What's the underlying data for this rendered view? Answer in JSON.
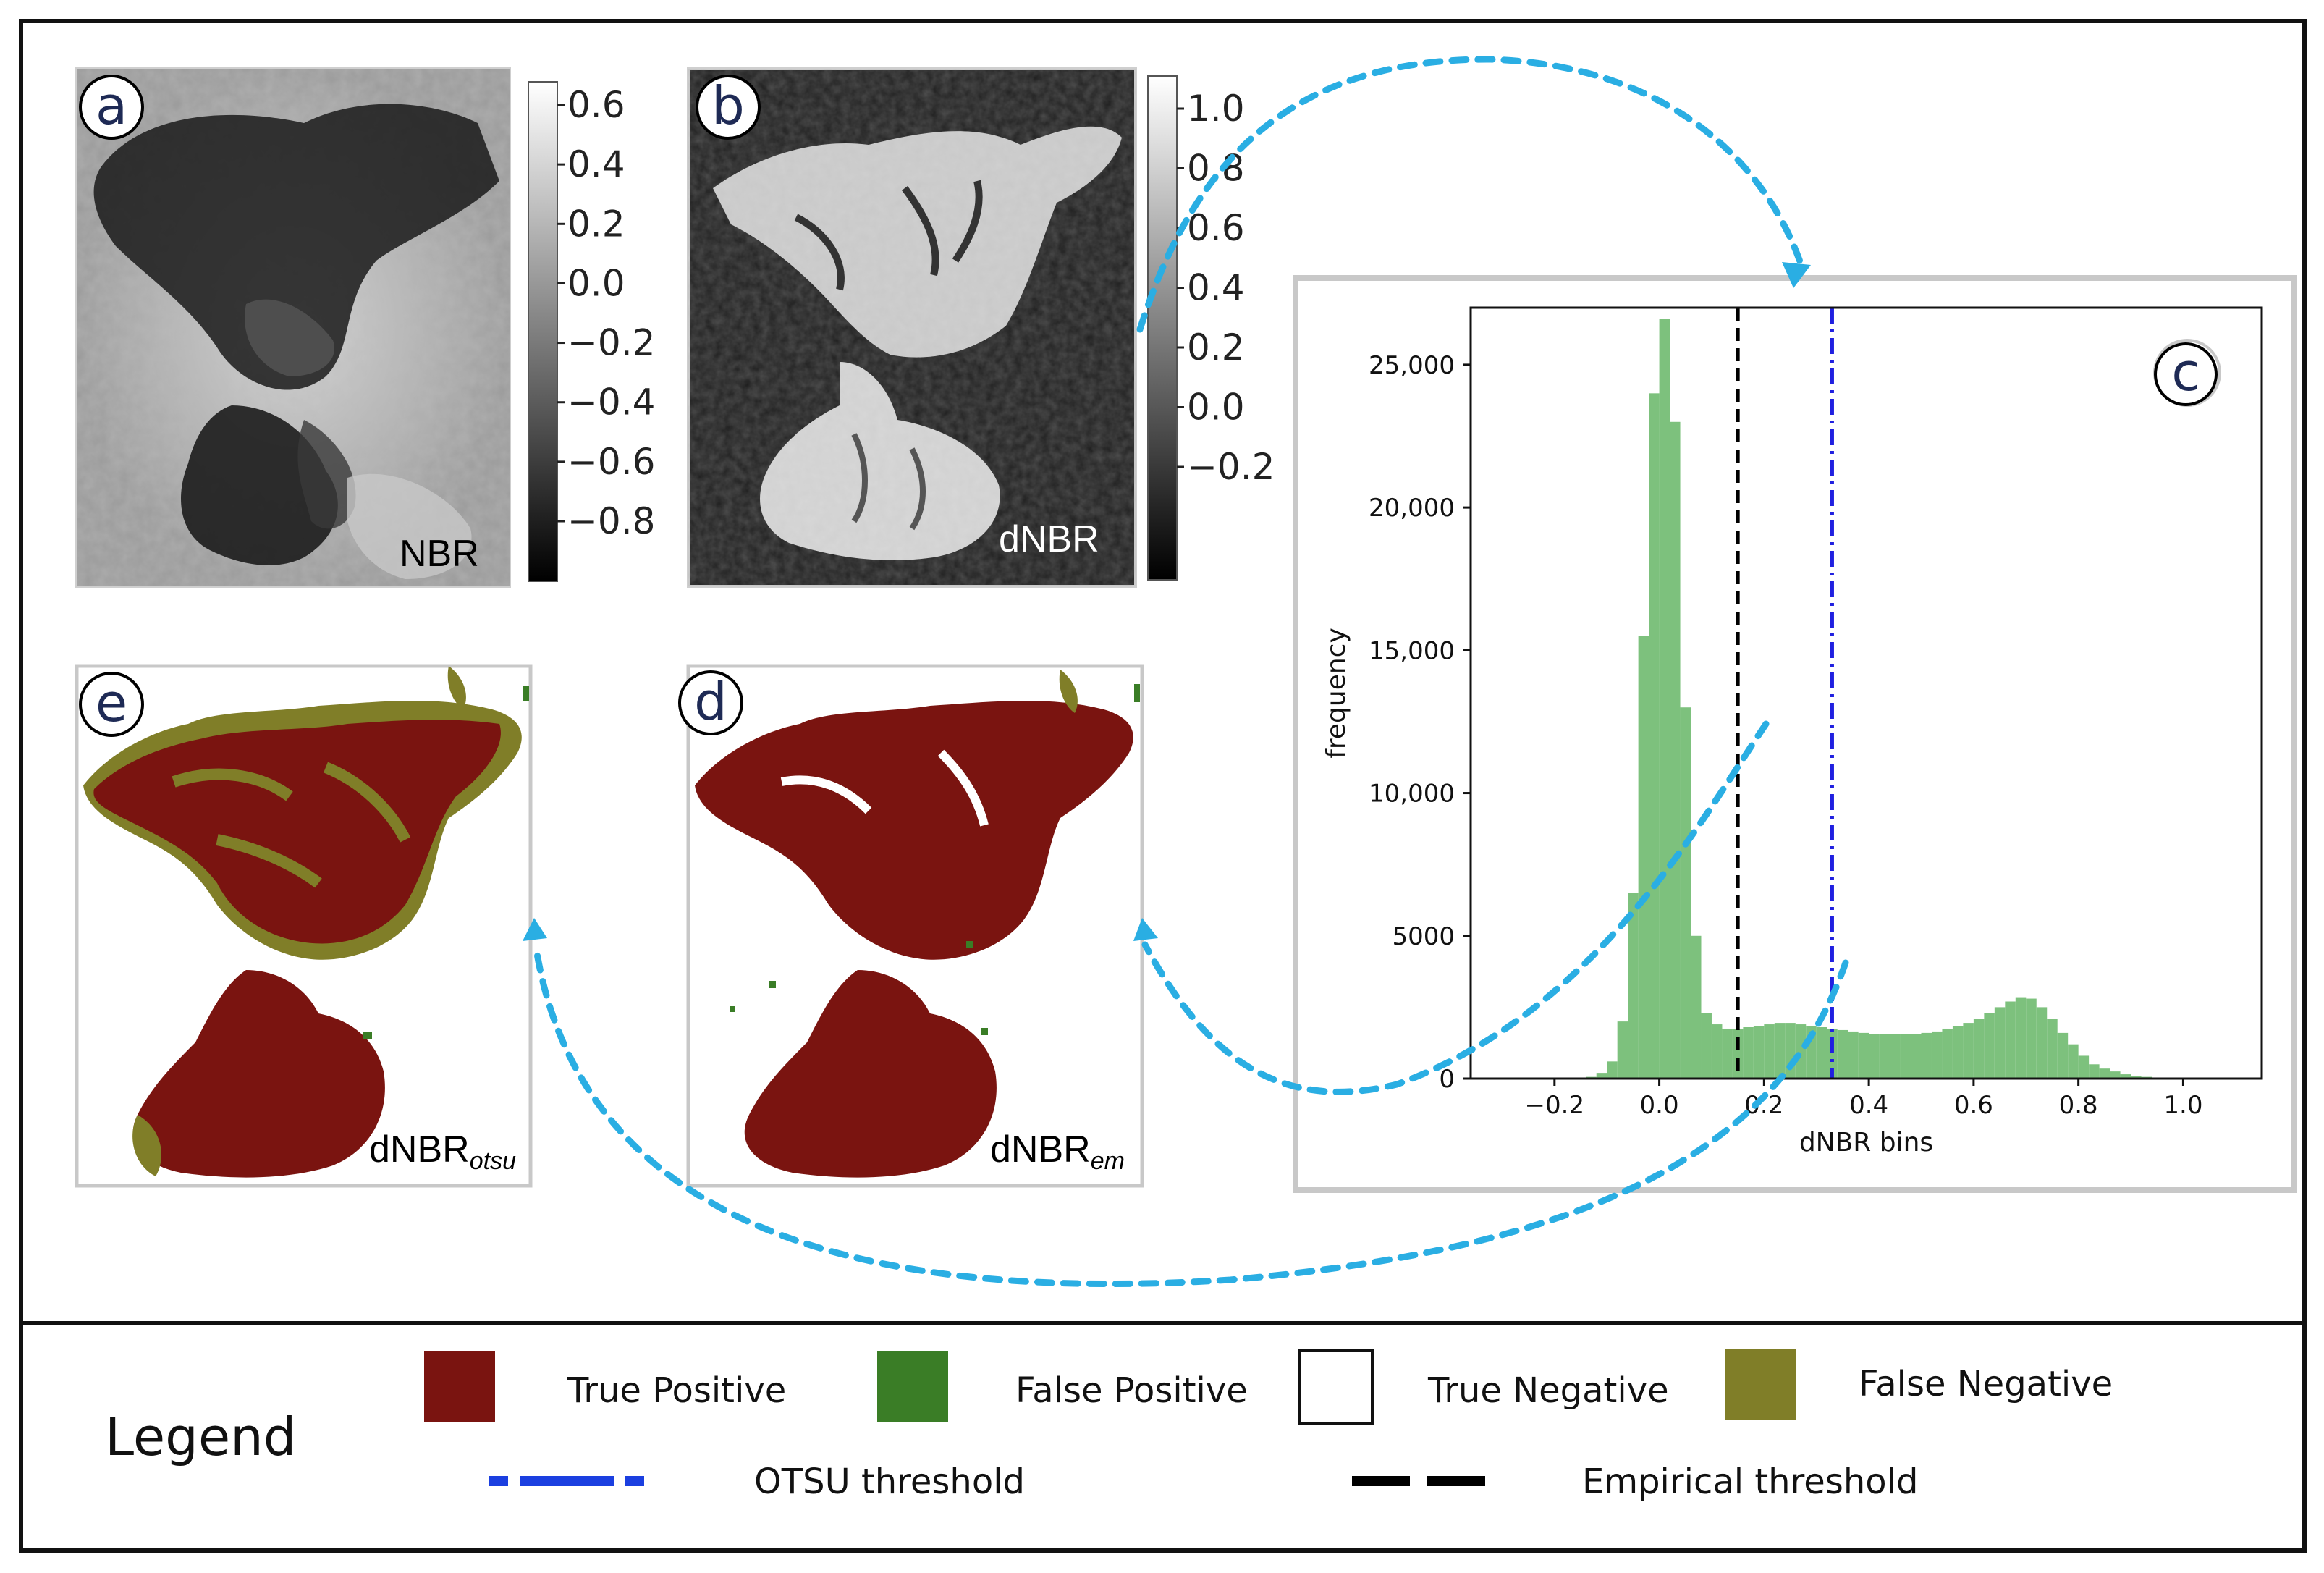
{
  "panels": {
    "a": {
      "label": "a",
      "caption": "NBR",
      "colorbar": {
        "ticks": [
          "0.6",
          "0.4",
          "0.2",
          "0.0",
          "−0.2",
          "−0.4",
          "−0.6",
          "−0.8"
        ]
      }
    },
    "b": {
      "label": "b",
      "caption": "dNBR",
      "colorbar": {
        "ticks": [
          "1.0",
          "0.8",
          "0.6",
          "0.4",
          "0.2",
          "0.0",
          "−0.2"
        ]
      }
    },
    "c": {
      "label": "c"
    },
    "d": {
      "label": "d",
      "caption_main": "dNBR",
      "caption_sub": "em"
    },
    "e": {
      "label": "e",
      "caption_main": "dNBR",
      "caption_sub": "otsu"
    }
  },
  "chart_data": {
    "type": "bar",
    "title": "",
    "xlabel": "dNBR bins",
    "ylabel": "frequency",
    "xlim": [
      -0.36,
      1.15
    ],
    "ylim": [
      0,
      27000
    ],
    "xticks": [
      -0.2,
      0.0,
      0.2,
      0.4,
      0.6,
      0.8,
      1.0
    ],
    "xtick_labels": [
      "−0.2",
      "0.0",
      "0.2",
      "0.4",
      "0.6",
      "0.8",
      "1.0"
    ],
    "yticks": [
      0,
      5000,
      10000,
      15000,
      20000,
      25000
    ],
    "ytick_labels": [
      "0",
      "5000",
      "10,000",
      "15,000",
      "20,000",
      "25,000"
    ],
    "bin_width": 0.02,
    "bins_start": [
      -0.14,
      -0.12,
      -0.1,
      -0.08,
      -0.06,
      -0.04,
      -0.02,
      0.0,
      0.02,
      0.04,
      0.06,
      0.08,
      0.1,
      0.12,
      0.14,
      0.16,
      0.18,
      0.2,
      0.22,
      0.24,
      0.26,
      0.28,
      0.3,
      0.32,
      0.34,
      0.36,
      0.38,
      0.4,
      0.42,
      0.44,
      0.46,
      0.48,
      0.5,
      0.52,
      0.54,
      0.56,
      0.58,
      0.6,
      0.62,
      0.64,
      0.66,
      0.68,
      0.7,
      0.72,
      0.74,
      0.76,
      0.78,
      0.8,
      0.82,
      0.84,
      0.86,
      0.88,
      0.9,
      0.92,
      0.94,
      0.96,
      0.98
    ],
    "values": [
      60,
      200,
      600,
      2000,
      6500,
      15500,
      24000,
      26600,
      23000,
      13000,
      5000,
      2300,
      1900,
      1750,
      1750,
      1800,
      1850,
      1900,
      1950,
      1950,
      1900,
      1850,
      1800,
      1750,
      1700,
      1650,
      1600,
      1550,
      1550,
      1550,
      1550,
      1550,
      1600,
      1650,
      1750,
      1850,
      1950,
      2100,
      2300,
      2500,
      2700,
      2850,
      2800,
      2500,
      2100,
      1600,
      1200,
      800,
      500,
      350,
      250,
      150,
      100,
      60,
      30,
      15,
      5
    ],
    "bar_color": "#7dc17d",
    "thresholds": [
      {
        "name": "Empirical threshold",
        "x": 0.15,
        "color": "#000000",
        "style": "dashed"
      },
      {
        "name": "OTSU threshold",
        "x": 0.33,
        "color": "#2020e0",
        "style": "dashdot"
      }
    ]
  },
  "legend": {
    "title": "Legend",
    "items": [
      {
        "label": "True Positive",
        "color": "#7a1410"
      },
      {
        "label": "False Positive",
        "color": "#3a7d26"
      },
      {
        "label": "True Negative",
        "color": "#ffffff"
      },
      {
        "label": "False Negative",
        "color": "#807e28"
      }
    ],
    "lines": [
      {
        "label": "OTSU threshold",
        "color": "#1b3fe0"
      },
      {
        "label": "Empirical threshold",
        "color": "#000000"
      }
    ]
  },
  "colors": {
    "arrow": "#2aaee3",
    "panel_border": "#c8c8c8",
    "burn_tp": "#7a1410",
    "burn_fn": "#807e28",
    "burn_fp": "#3a7d26"
  }
}
